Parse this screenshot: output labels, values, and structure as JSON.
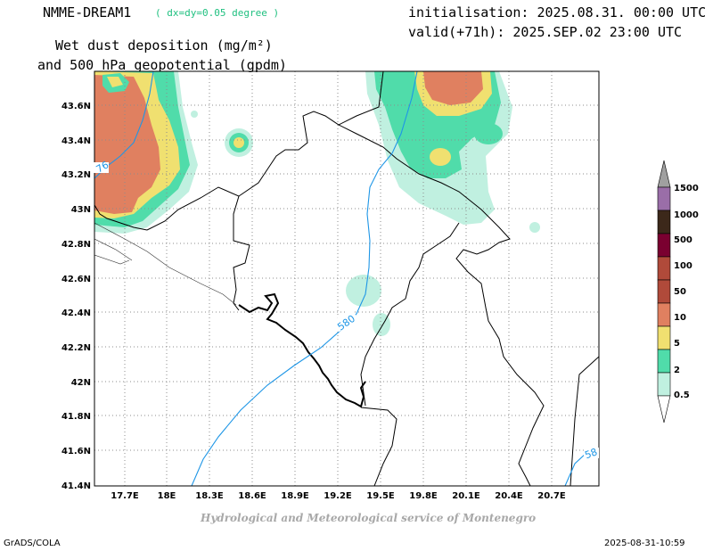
{
  "header": {
    "model_name": "NMME-DREAM1",
    "model_resolution": "( dx=dy=0.05 degree )",
    "init_line": "initialisation: 2025.08.31. 00:00 UTC",
    "valid_line": "valid(+71h): 2025.SEP.02 23:00 UTC",
    "title_line1": "Wet dust deposition (mg/m²)",
    "title_line2": "and 500 hPa geopotential (gpdm)"
  },
  "map": {
    "lat_ticks": [
      "43.6N",
      "43.4N",
      "43.2N",
      "43N",
      "42.8N",
      "42.6N",
      "42.4N",
      "42.2N",
      "42N",
      "41.8N",
      "41.6N",
      "41.4N"
    ],
    "lon_ticks": [
      "17.7E",
      "18E",
      "18.3E",
      "18.6E",
      "18.9E",
      "19.2E",
      "19.5E",
      "19.8E",
      "20.1E",
      "20.4E",
      "20.7E"
    ],
    "contour_labels": [
      "76",
      "580",
      "58"
    ],
    "colors": {
      "contour": "#1e96e6",
      "border": "#000000",
      "grid": "#8c8c8c"
    }
  },
  "legend": {
    "levels": [
      "1500",
      "1000",
      "500",
      "100",
      "50",
      "10",
      "5",
      "2",
      "0.5"
    ],
    "colors": [
      "#a0a0a0",
      "#9a6ea8",
      "#3c281a",
      "#7a0030",
      "#b04a3a",
      "#e08060",
      "#f0e070",
      "#50dcaa",
      "#c0f0e0",
      "#ffffff"
    ]
  },
  "footer": {
    "service": "Hydrological and Meteorological service of Montenegro",
    "left": "GrADS/COLA",
    "right": "2025-08-31-10:59"
  }
}
